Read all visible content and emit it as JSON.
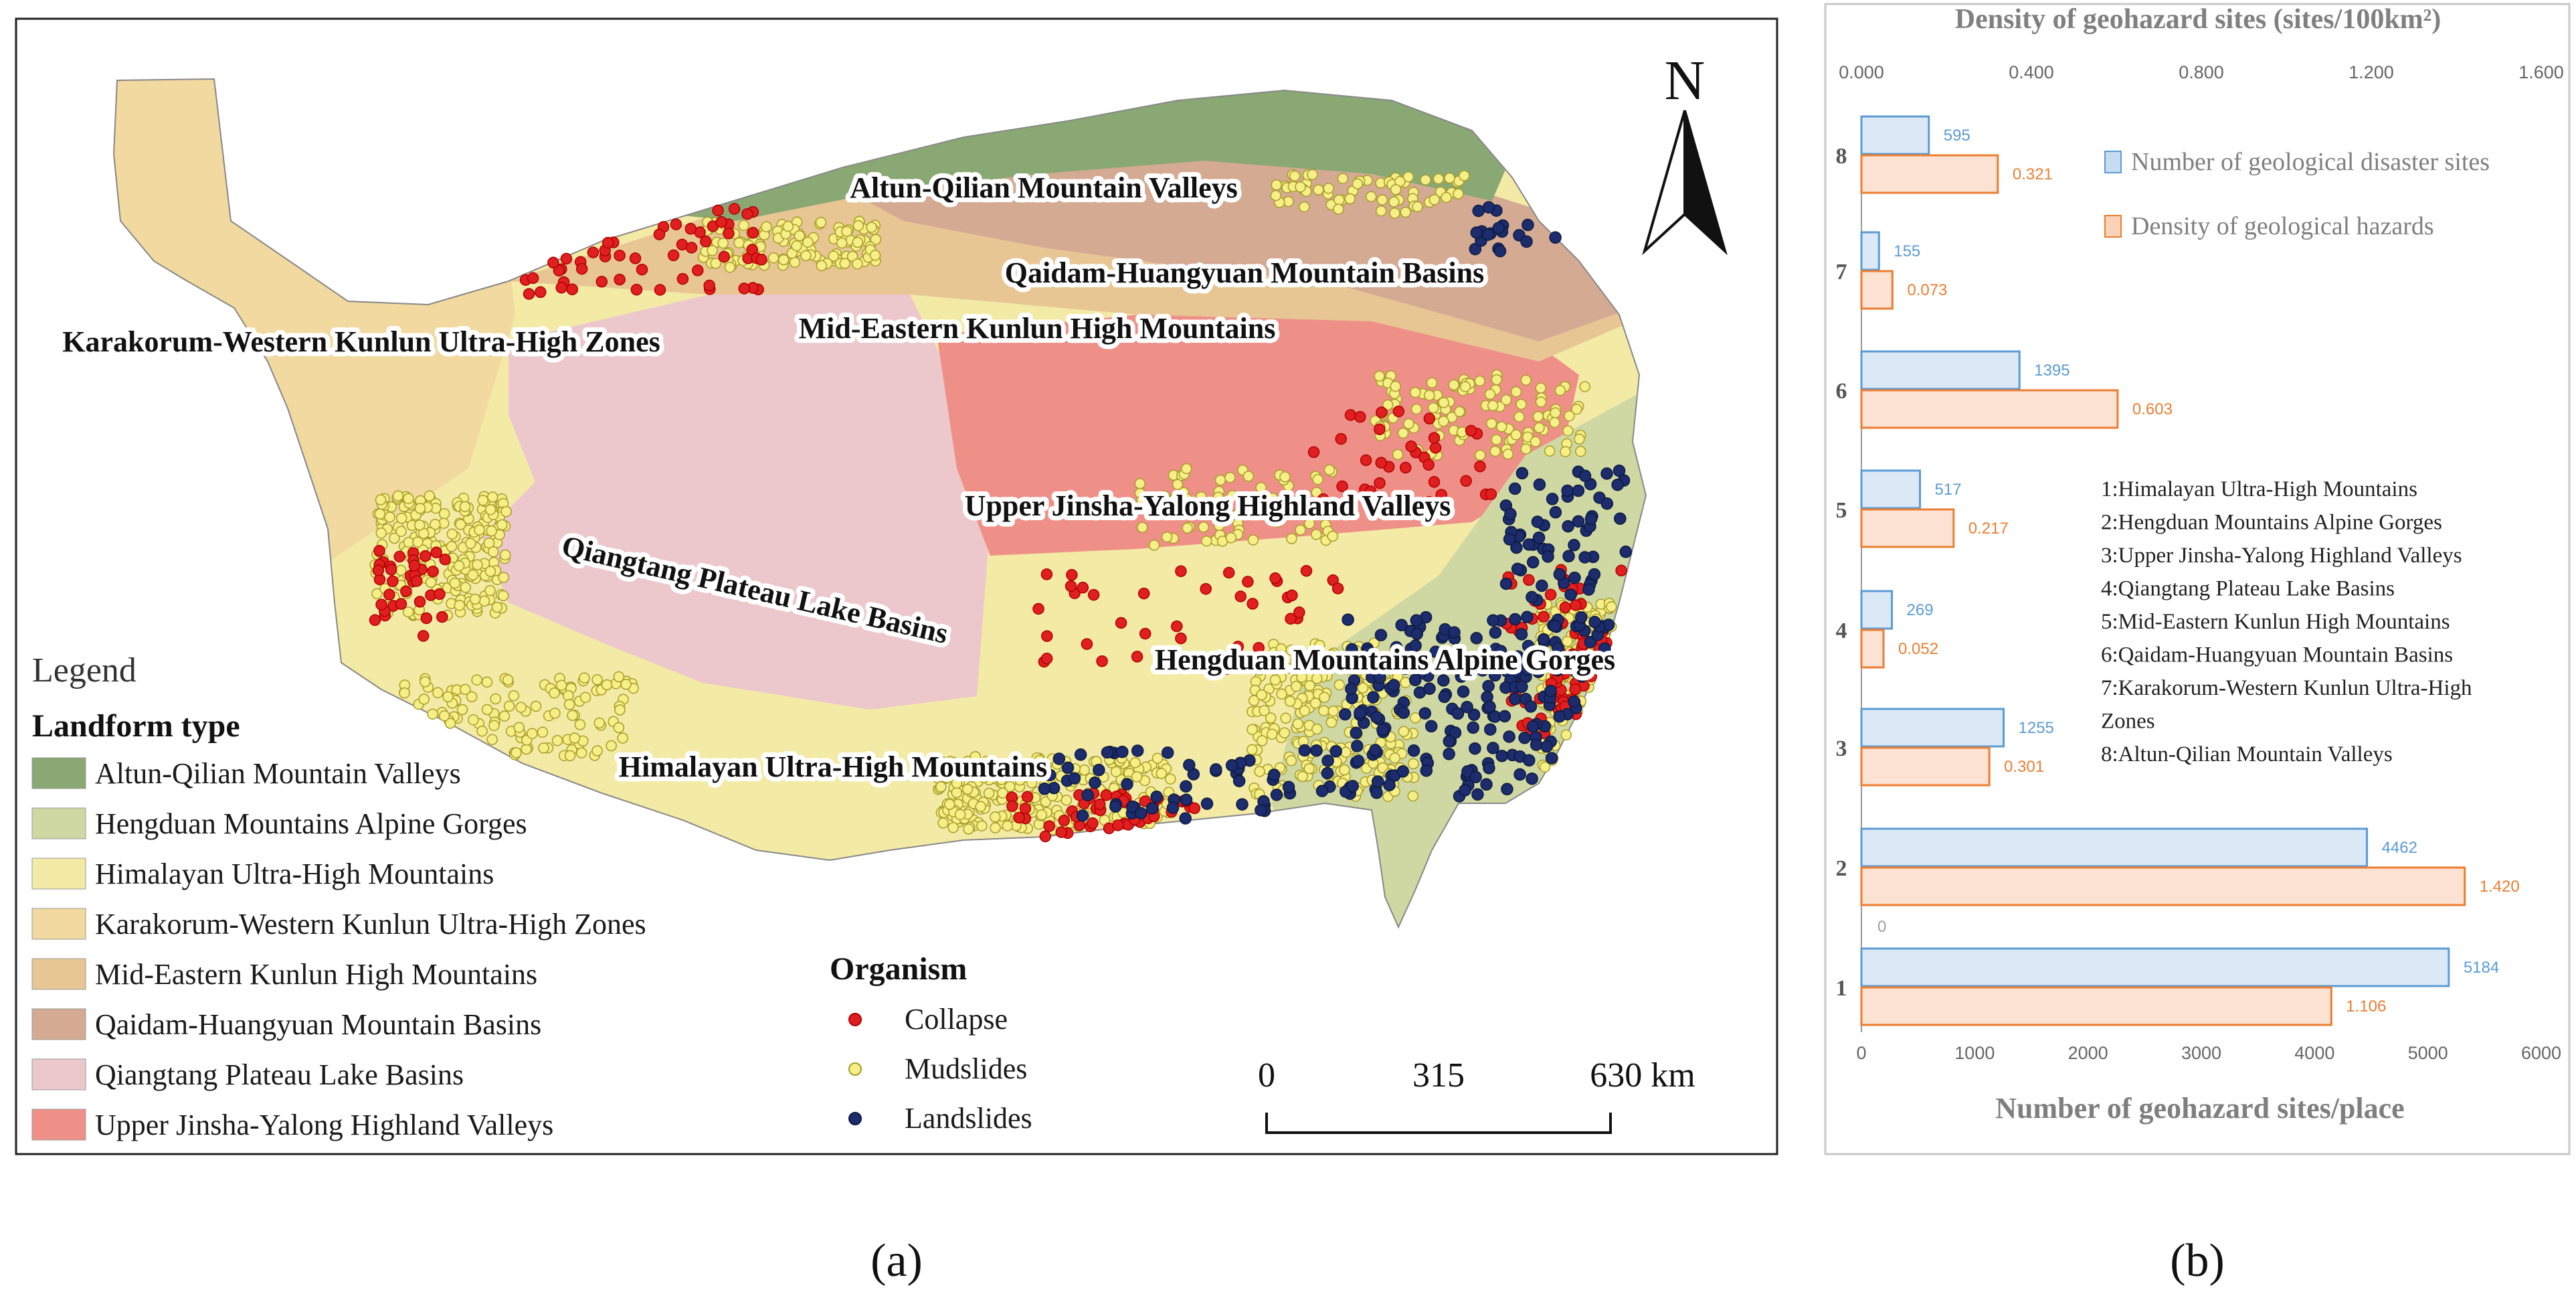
{
  "map": {
    "north_label": "N",
    "region_labels": [
      "Altun-Qilian Mountain Valleys",
      "Qaidam-Huangyuan Mountain Basins",
      "Mid-Eastern Kunlun High Mountains",
      "Karakorum-Western Kunlun Ultra-High Zones",
      "Upper Jinsha-Yalong Highland Valleys",
      "Qiangtang Plateau Lake Basins",
      "Hengduan Mountains Alpine Gorges",
      "Himalayan Ultra-High Mountains"
    ],
    "legend": {
      "title": "Legend",
      "landform_title": "Landform type",
      "landform_items": [
        {
          "label": "Altun-Qilian Mountain Valleys",
          "color": "#8aa873"
        },
        {
          "label": "Hengduan Mountains Alpine Gorges",
          "color": "#cfd8a2"
        },
        {
          "label": "Himalayan Ultra-High Mountains",
          "color": "#f3eaa6"
        },
        {
          "label": "Karakorum-Western Kunlun Ultra-High Zones",
          "color": "#f1d9a0"
        },
        {
          "label": "Mid-Eastern Kunlun High Mountains",
          "color": "#e7c694"
        },
        {
          "label": "Qaidam-Huangyuan Mountain Basins",
          "color": "#d4aa93"
        },
        {
          "label": "Qiangtang Plateau Lake Basins",
          "color": "#ecc8cc"
        },
        {
          "label": "Upper Jinsha-Yalong Highland Valleys",
          "color": "#ef9088"
        }
      ],
      "organism_title": "Organism",
      "organism_items": [
        {
          "label": "Collapse",
          "color": "#e02020"
        },
        {
          "label": "Mudslides",
          "color": "#f6ee86"
        },
        {
          "label": "Landslides",
          "color": "#1c2c6c"
        }
      ]
    },
    "scale_bar": {
      "ticks": [
        "0",
        "315",
        "630 km"
      ]
    }
  },
  "panel_labels": [
    "(a)",
    "(b)"
  ],
  "chart_data": {
    "type": "bar",
    "orientation": "horizontal",
    "categories": [
      "8",
      "7",
      "6",
      "5",
      "4",
      "3",
      "2",
      "1"
    ],
    "series": [
      {
        "name": "Number of geological disaster sites",
        "axis": "bottom",
        "color": "#5b9bd5",
        "values": [
          595,
          155,
          1395,
          517,
          269,
          1255,
          4462,
          5184
        ],
        "data_labels": [
          "595",
          "155",
          "1395",
          "517",
          "269",
          "1255",
          "4462",
          "5184"
        ]
      },
      {
        "name": "Density of geological hazards",
        "axis": "top",
        "color": "#ed7d31",
        "values": [
          0.321,
          0.073,
          0.603,
          0.217,
          0.052,
          0.301,
          1.42,
          1.106
        ],
        "data_labels": [
          "0.321",
          "0.073",
          "0.603",
          "0.217",
          "0.052",
          "0.301",
          "1.420",
          "1.106"
        ]
      }
    ],
    "top_axis": {
      "label": "Density of geohazard sites (sites/100km²)",
      "range": [
        0,
        1.6
      ],
      "ticks": [
        "0.000",
        "0.400",
        "0.800",
        "1.200",
        "1.600"
      ]
    },
    "bottom_axis": {
      "label": "Number of geohazard sites/place",
      "range": [
        0,
        6000
      ],
      "ticks": [
        "0",
        "1000",
        "2000",
        "3000",
        "4000",
        "5000",
        "6000"
      ]
    },
    "extra_label": "0",
    "category_key": [
      "1:Himalayan Ultra-High Mountains",
      "2:Hengduan Mountains Alpine Gorges",
      "3:Upper Jinsha-Yalong Highland Valleys",
      "4:Qiangtang Plateau Lake Basins",
      "5:Mid-Eastern Kunlun High Mountains",
      "6:Qaidam-Huangyuan Mountain Basins",
      "7:Karakorum-Western Kunlun Ultra-High",
      "Zones",
      "8:Altun-Qilian Mountain Valleys"
    ],
    "legend_position": "top-right"
  }
}
